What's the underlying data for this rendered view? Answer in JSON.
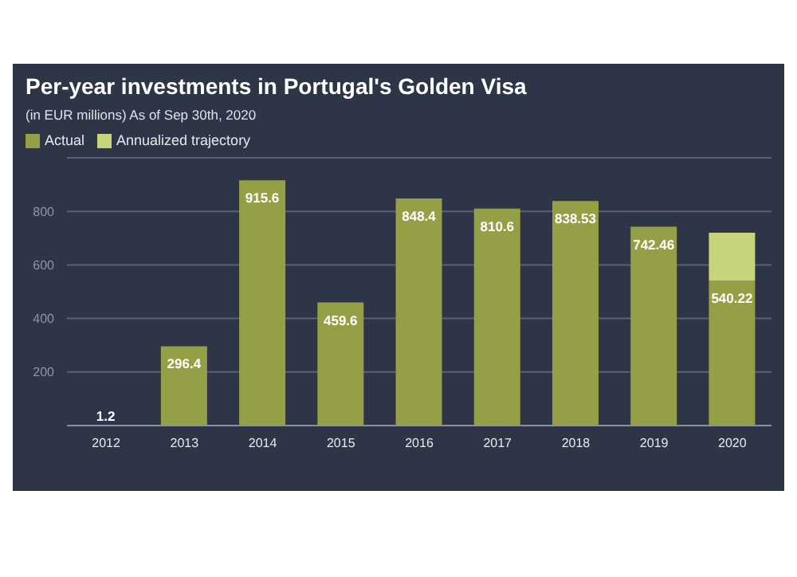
{
  "chart_data": {
    "type": "bar",
    "title": "Per-year investments in Portugal's Golden Visa",
    "subtitle": "(in EUR millions) As of Sep 30th, 2020",
    "categories": [
      "2012",
      "2013",
      "2014",
      "2015",
      "2016",
      "2017",
      "2018",
      "2019",
      "2020"
    ],
    "stacked": true,
    "series": [
      {
        "name": "Actual",
        "color": "#959f45",
        "values": [
          1.2,
          296.4,
          915.6,
          459.6,
          848.4,
          810.6,
          838.53,
          742.46,
          540.22
        ],
        "value_labels": [
          "1.2",
          "296.4",
          "915.6",
          "459.6",
          "848.4",
          "810.6",
          "838.53",
          "742.46",
          "540.22"
        ]
      },
      {
        "name": "Annualized trajectory",
        "color": "#c8d47a",
        "values": [
          null,
          null,
          null,
          null,
          null,
          null,
          null,
          null,
          180
        ]
      }
    ],
    "ylim": [
      0,
      1000
    ],
    "yticks": [
      {
        "value": 0,
        "label": null
      },
      200,
      400,
      600,
      800
    ],
    "grid": "y",
    "legend": "top left"
  }
}
